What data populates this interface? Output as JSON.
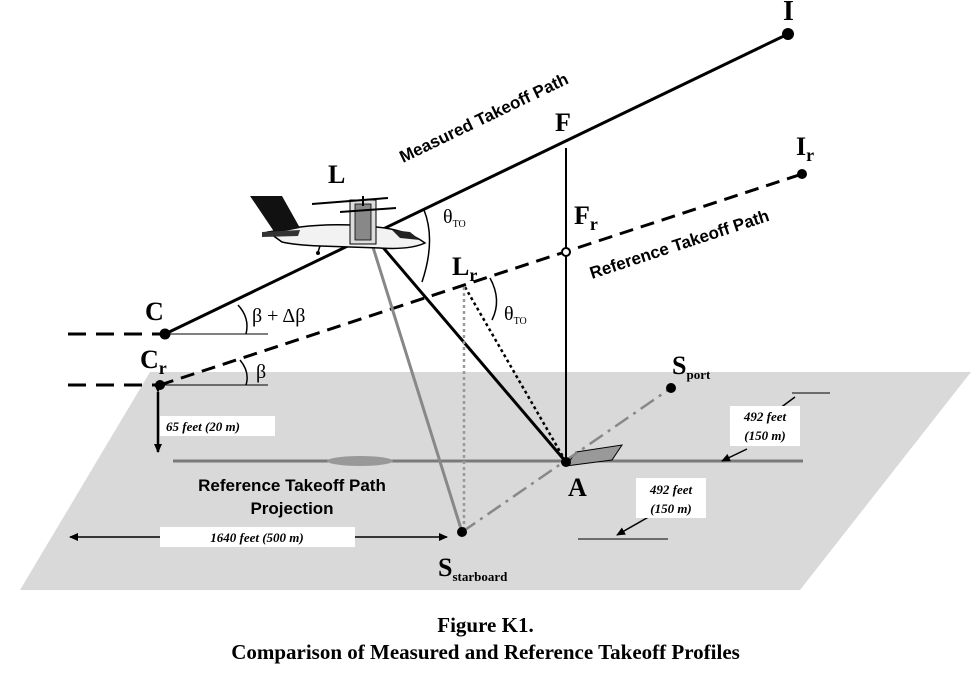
{
  "labels": {
    "I": "I",
    "F": "F",
    "L": "L",
    "Ir_main": "I",
    "Ir_sub": "r",
    "Fr_main": "F",
    "Fr_sub": "r",
    "Lr_main": "L",
    "Lr_sub": "r",
    "C": "C",
    "Cr_main": "C",
    "Cr_sub": "r",
    "A": "A",
    "Sport_main": "S",
    "Sport_sub": "port",
    "Sstar_main": "S",
    "Sstar_sub": "starboard",
    "theta_main": "θ",
    "theta_sub": "TO",
    "beta_delta": "β + Δβ",
    "beta": "β"
  },
  "text": {
    "measured_path": "Measured Takeoff Path",
    "reference_path": "Reference Takeoff Path",
    "projection_line1": "Reference Takeoff Path",
    "projection_line2": "Projection"
  },
  "dimensions": {
    "height": "65 feet  (20 m)",
    "distance": "1640 feet  (500 m)",
    "right_top_1": "492 feet",
    "right_top_2": "(150 m)",
    "right_bottom_1": "492 feet",
    "right_bottom_2": "(150 m)"
  },
  "caption": {
    "line1": "Figure K1.",
    "line2": "Comparison of Measured and Reference Takeoff Profiles"
  }
}
